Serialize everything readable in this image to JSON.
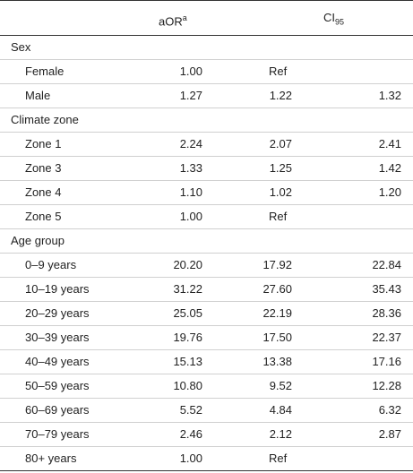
{
  "header": {
    "aor": "aOR",
    "aor_sup": "a",
    "ci": "CI",
    "ci_sub": "95"
  },
  "sections": [
    {
      "title": "Sex",
      "rows": [
        {
          "label": "Female",
          "aor": "1.00",
          "ci_low": "Ref"
        },
        {
          "label": "Male",
          "aor": "1.27",
          "ci_low": "1.22",
          "ci_high": "1.32"
        }
      ]
    },
    {
      "title": "Climate zone",
      "rows": [
        {
          "label": "Zone 1",
          "aor": "2.24",
          "ci_low": "2.07",
          "ci_high": "2.41"
        },
        {
          "label": "Zone 3",
          "aor": "1.33",
          "ci_low": "1.25",
          "ci_high": "1.42"
        },
        {
          "label": "Zone 4",
          "aor": "1.10",
          "ci_low": "1.02",
          "ci_high": "1.20"
        },
        {
          "label": "Zone 5",
          "aor": "1.00",
          "ci_low": "Ref"
        }
      ]
    },
    {
      "title": "Age group",
      "rows": [
        {
          "label": "0–9 years",
          "aor": "20.20",
          "ci_low": "17.92",
          "ci_high": "22.84"
        },
        {
          "label": "10–19 years",
          "aor": "31.22",
          "ci_low": "27.60",
          "ci_high": "35.43"
        },
        {
          "label": "20–29 years",
          "aor": "25.05",
          "ci_low": "22.19",
          "ci_high": "28.36"
        },
        {
          "label": "30–39 years",
          "aor": "19.76",
          "ci_low": "17.50",
          "ci_high": "22.37"
        },
        {
          "label": "40–49 years",
          "aor": "15.13",
          "ci_low": "13.38",
          "ci_high": "17.16"
        },
        {
          "label": "50–59 years",
          "aor": "10.80",
          "ci_low": "9.52",
          "ci_high": "12.28"
        },
        {
          "label": "60–69 years",
          "aor": "5.52",
          "ci_low": "4.84",
          "ci_high": "6.32"
        },
        {
          "label": "70–79 years",
          "aor": "2.46",
          "ci_low": "2.12",
          "ci_high": "2.87"
        },
        {
          "label": "80+ years",
          "aor": "1.00",
          "ci_low": "Ref"
        }
      ]
    }
  ]
}
